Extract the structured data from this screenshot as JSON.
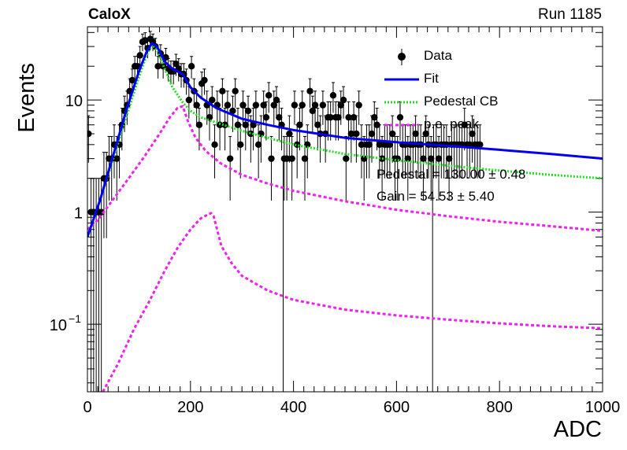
{
  "header": {
    "experiment": "CaloX",
    "run": "Run 1185"
  },
  "chart_data": {
    "type": "scatter",
    "title": "",
    "xlabel": "ADC",
    "ylabel": "Events",
    "xlim": [
      0,
      1000
    ],
    "ylim": [
      0.025,
      45
    ],
    "yscale": "log",
    "x_ticks": [
      0,
      200,
      400,
      600,
      800,
      1000
    ],
    "y_ticks": [
      {
        "value": 10,
        "label": "10"
      },
      {
        "value": 1,
        "label": "1"
      },
      {
        "value": 0.1,
        "label": "10",
        "exponent": "−1"
      }
    ],
    "legend_position": "top-right",
    "legend": [
      {
        "label": "Data",
        "style": "marker"
      },
      {
        "label": "Fit",
        "style": "line"
      },
      {
        "label": "Pedestal CB",
        "style": "dotted"
      },
      {
        "label": "p.e. peak",
        "style": "dashed"
      }
    ],
    "stats": [
      "Pedestal = 130.00 ± 0.48",
      "Gain = 54.53 ± 5.40"
    ],
    "colors": {
      "data": "#000000",
      "fit": "#0000ee",
      "pedestal": "#22dd22",
      "pe": "#ee22ee"
    },
    "series": [
      {
        "name": "Data",
        "bin_width": 5,
        "x": [
          2,
          7,
          12,
          17,
          22,
          27,
          32,
          37,
          42,
          47,
          52,
          57,
          62,
          67,
          72,
          77,
          82,
          87,
          92,
          97,
          102,
          107,
          112,
          117,
          122,
          127,
          132,
          137,
          142,
          147,
          152,
          157,
          162,
          167,
          172,
          177,
          182,
          187,
          192,
          197,
          202,
          207,
          212,
          217,
          222,
          227,
          232,
          237,
          242,
          247,
          252,
          257,
          262,
          267,
          272,
          277,
          282,
          287,
          292,
          297,
          302,
          307,
          312,
          317,
          322,
          327,
          332,
          337,
          342,
          347,
          352,
          357,
          362,
          367,
          372,
          377,
          382,
          387,
          392,
          397,
          402,
          407,
          412,
          417,
          422,
          427,
          432,
          437,
          442,
          447,
          452,
          457,
          462,
          467,
          472,
          477,
          482,
          487,
          492,
          497,
          502,
          507,
          512,
          517,
          522,
          527,
          532,
          537,
          542,
          547,
          552,
          557,
          562,
          567,
          572,
          577,
          582,
          587,
          592,
          597,
          602,
          607,
          612,
          617,
          622,
          627,
          632,
          637,
          642,
          647,
          652,
          657,
          662,
          667,
          672,
          677,
          682,
          687,
          692,
          697,
          702,
          707,
          712,
          717,
          722,
          727,
          732,
          737,
          742,
          747,
          752,
          757,
          762
        ],
        "y": [
          5,
          1,
          1,
          1,
          1,
          1,
          2,
          2,
          3,
          3,
          4,
          3,
          4,
          6,
          8,
          9,
          12,
          15,
          20,
          20,
          25,
          33,
          34,
          29,
          35,
          33,
          30,
          20,
          26,
          20,
          24,
          19,
          18,
          18,
          21,
          19,
          17,
          17,
          15,
          10,
          20,
          12,
          9,
          6,
          14,
          15,
          9,
          7,
          10,
          4,
          9,
          6,
          12,
          6,
          9,
          3,
          8,
          12,
          6,
          4,
          9,
          6,
          8,
          5,
          6,
          9,
          4,
          5,
          9,
          7,
          11,
          3,
          9,
          10,
          7,
          6,
          3,
          3,
          5,
          3,
          9,
          4,
          6,
          9,
          3,
          4,
          12,
          8,
          9,
          6,
          5,
          9,
          5,
          7,
          7,
          11,
          7,
          7,
          9,
          10,
          3,
          7,
          5,
          7,
          5,
          9,
          4,
          3,
          4,
          4,
          5,
          7,
          6,
          4,
          3,
          4,
          4,
          4,
          5,
          3,
          3,
          7,
          4,
          4,
          3,
          4,
          4,
          5,
          4,
          4,
          3,
          5,
          4,
          3,
          4,
          4,
          3,
          4,
          4,
          4,
          3,
          4,
          4,
          4,
          4,
          4,
          6,
          4,
          4,
          5,
          4,
          4,
          4
        ],
        "error": "sqrt"
      },
      {
        "name": "Fit",
        "x": [
          0,
          25,
          50,
          75,
          100,
          115,
          125,
          135,
          150,
          165,
          185,
          200,
          220,
          250,
          300,
          350,
          400,
          500,
          600,
          700,
          800,
          900,
          1000
        ],
        "y": [
          0.6,
          1.3,
          3.2,
          8,
          18,
          27,
          32,
          30,
          22,
          19,
          17,
          13,
          10.5,
          8.5,
          6.8,
          6.0,
          5.4,
          4.6,
          4.2,
          3.9,
          3.6,
          3.3,
          3.0
        ]
      },
      {
        "name": "Pedestal CB",
        "x": [
          0,
          25,
          50,
          75,
          100,
          115,
          125,
          135,
          150,
          165,
          185,
          200,
          220,
          250,
          300,
          350,
          400,
          500,
          600,
          700,
          800,
          900,
          1000
        ],
        "y": [
          0.6,
          1.3,
          3.0,
          7,
          16,
          25,
          31,
          28,
          19,
          13,
          9.5,
          8,
          7,
          6.3,
          5.3,
          4.6,
          4.0,
          3.3,
          2.9,
          2.6,
          2.35,
          2.15,
          2.0
        ]
      },
      {
        "name": "p.e. peak",
        "x": [
          0,
          20,
          50,
          80,
          110,
          140,
          160,
          175,
          185,
          195,
          210,
          230,
          260,
          300,
          350,
          400,
          500,
          600,
          700,
          800,
          900,
          1000
        ],
        "y": [
          0.7,
          0.85,
          1.3,
          2.0,
          3.1,
          5.0,
          7.0,
          8.5,
          8.8,
          6.5,
          4.6,
          3.5,
          2.7,
          2.15,
          1.8,
          1.55,
          1.25,
          1.05,
          0.92,
          0.82,
          0.75,
          0.68
        ]
      },
      {
        "name": "p.e. peak",
        "x": [
          30,
          60,
          90,
          120,
          150,
          175,
          200,
          220,
          235,
          240,
          245,
          250,
          260,
          280,
          300,
          350,
          400,
          500,
          600,
          700,
          800,
          900,
          1000
        ],
        "y": [
          0.025,
          0.045,
          0.09,
          0.16,
          0.3,
          0.48,
          0.7,
          0.88,
          0.96,
          0.98,
          0.92,
          0.75,
          0.5,
          0.35,
          0.27,
          0.2,
          0.165,
          0.135,
          0.12,
          0.11,
          0.102,
          0.096,
          0.092
        ]
      },
      {
        "name": "",
        "x": [
          380,
          670
        ],
        "y_low": [
          0.025,
          0.025
        ],
        "y_high": [
          3,
          3
        ]
      }
    ]
  }
}
